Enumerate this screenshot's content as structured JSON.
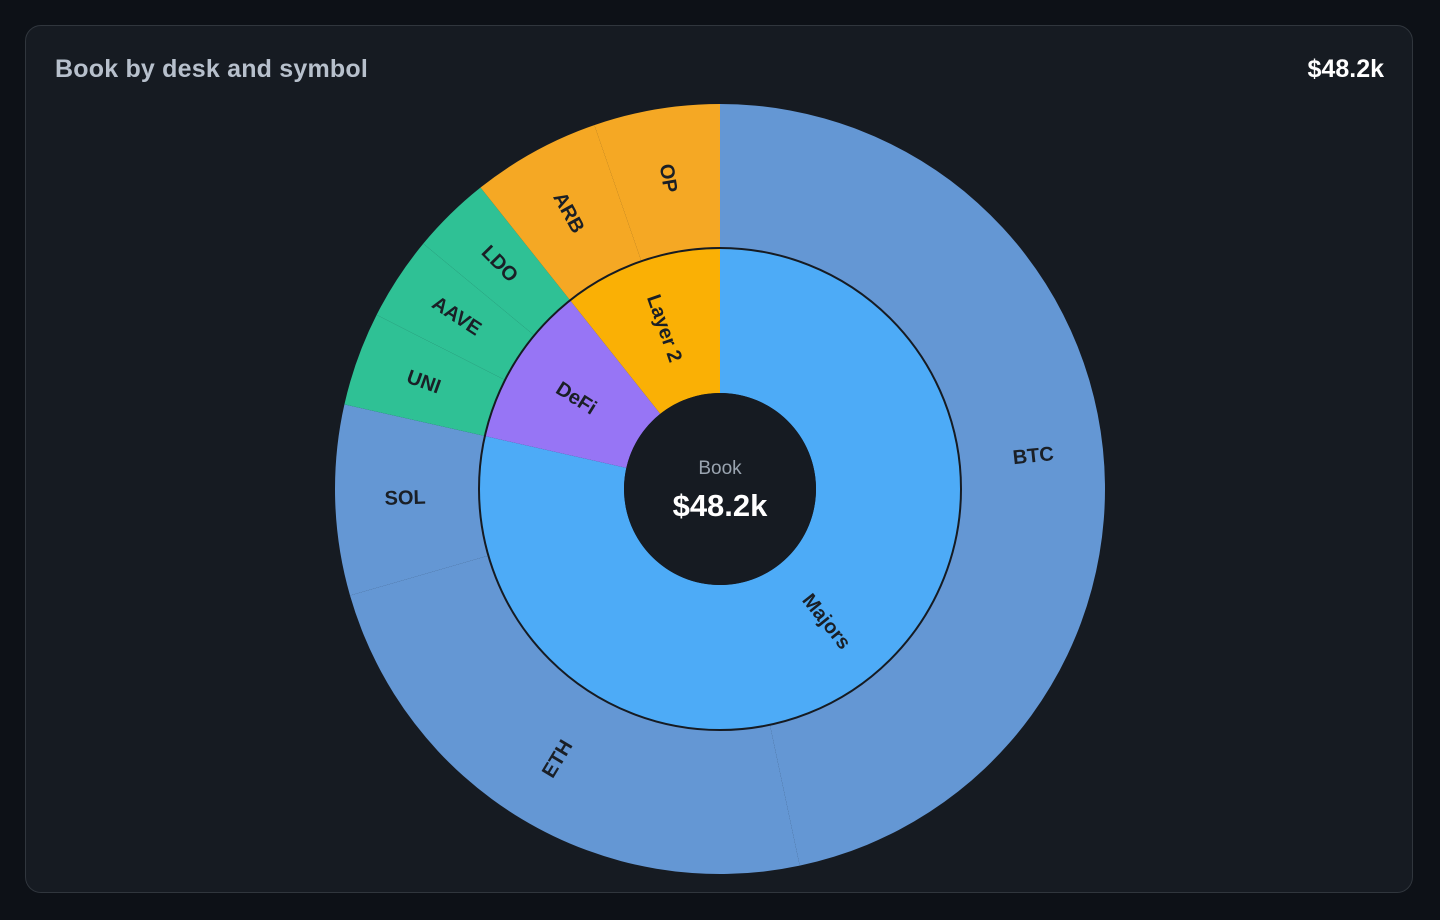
{
  "header": {
    "title": "Book by desk and symbol",
    "total": "$48.2k"
  },
  "center": {
    "caption": "Book",
    "value": "$48.2k"
  },
  "chart_data": {
    "type": "sunburst",
    "title": "Book by desk and symbol",
    "total": 48.2,
    "unit": "$k",
    "desks": [
      {
        "name": "Majors",
        "color": "#4dabf7",
        "child_color": "#6497d4",
        "value": 37.85,
        "children": [
          {
            "name": "BTC",
            "value": 22.5
          },
          {
            "name": "ETH",
            "value": 11.5
          },
          {
            "name": "SOL",
            "value": 3.85
          }
        ]
      },
      {
        "name": "DeFi",
        "color": "#9775f5",
        "child_color": "#2fc195",
        "value": 5.2,
        "children": [
          {
            "name": "UNI",
            "value": 1.9
          },
          {
            "name": "AAVE",
            "value": 1.7
          },
          {
            "name": "LDO",
            "value": 1.6
          }
        ]
      },
      {
        "name": "Layer 2",
        "color": "#fab005",
        "child_color": "#f5a824",
        "value": 5.15,
        "children": [
          {
            "name": "ARB",
            "value": 2.6
          },
          {
            "name": "OP",
            "value": 2.55
          }
        ]
      }
    ]
  }
}
